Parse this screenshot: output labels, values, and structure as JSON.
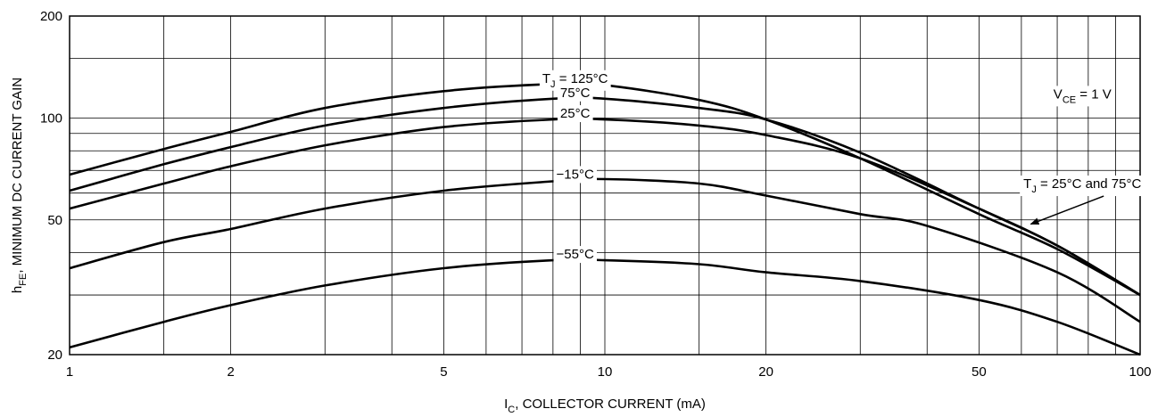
{
  "chart_data": {
    "type": "line",
    "title": "",
    "xlabel": {
      "main": "I",
      "sub": "C",
      "rest": ", COLLECTOR CURRENT (mA)"
    },
    "ylabel": {
      "main": "h",
      "sub": "FE",
      "rest": ", MINIMUM DC CURRENT GAIN"
    },
    "x_scale": "log",
    "y_scale": "log",
    "xlim": [
      1,
      100
    ],
    "ylim": [
      20,
      200
    ],
    "grid": true,
    "x_ticks": [
      1,
      2,
      5,
      10,
      20,
      50,
      100
    ],
    "x_tick_labels": [
      "1",
      "2",
      "5",
      "10",
      "20",
      "50",
      "100"
    ],
    "y_ticks": [
      20,
      50,
      100,
      200
    ],
    "y_tick_labels": [
      "20",
      "50",
      "100",
      "200"
    ],
    "x_grid": [
      1,
      1.5,
      2,
      3,
      4,
      5,
      6,
      7,
      8,
      9,
      10,
      15,
      20,
      30,
      40,
      50,
      60,
      70,
      80,
      90,
      100
    ],
    "y_grid": [
      20,
      30,
      40,
      50,
      60,
      70,
      80,
      90,
      100,
      150,
      200
    ],
    "series": [
      {
        "name": "T_J = 125°C",
        "x": [
          1,
          1.5,
          2,
          3,
          5,
          8,
          10,
          15,
          20,
          30,
          50,
          70,
          100
        ],
        "values": [
          68,
          81,
          91,
          107,
          120,
          126,
          125,
          113,
          99,
          76,
          52,
          41,
          30
        ]
      },
      {
        "name": "75°C",
        "x": [
          1,
          1.5,
          2,
          3,
          5,
          8,
          10,
          15,
          20,
          30,
          50,
          70,
          100
        ],
        "values": [
          61,
          73,
          82,
          95,
          107,
          114,
          114,
          107,
          99,
          79,
          54,
          42,
          30
        ]
      },
      {
        "name": "25°C",
        "x": [
          1,
          1.5,
          2,
          3,
          5,
          8,
          10,
          15,
          20,
          30,
          50,
          70,
          100
        ],
        "values": [
          54,
          64,
          72,
          83,
          94,
          99,
          99,
          95,
          89,
          76,
          54,
          42,
          30
        ]
      },
      {
        "name": "−15°C",
        "x": [
          1,
          1.5,
          2,
          3,
          5,
          8,
          10,
          15,
          20,
          30,
          40,
          70,
          100
        ],
        "values": [
          36,
          43,
          47,
          54,
          61,
          65,
          66,
          64,
          59,
          52,
          48,
          35,
          25
        ]
      },
      {
        "name": "−55°C",
        "x": [
          1,
          1.5,
          2,
          3,
          5,
          8,
          10,
          15,
          20,
          30,
          50,
          70,
          100
        ],
        "values": [
          21,
          25,
          28,
          32,
          36,
          38,
          38,
          37,
          35,
          33,
          29,
          25,
          20
        ]
      }
    ],
    "curve_labels": [
      {
        "series": 0,
        "main": "T",
        "sub": "J",
        "rest": " = 125°C"
      },
      {
        "series": 1,
        "main": "75°C",
        "sub": "",
        "rest": ""
      },
      {
        "series": 2,
        "main": "25°C",
        "sub": "",
        "rest": ""
      },
      {
        "series": 3,
        "main": "−15°C",
        "sub": "",
        "rest": ""
      },
      {
        "series": 4,
        "main": "−55°C",
        "sub": "",
        "rest": ""
      }
    ],
    "annotations": [
      {
        "main": "V",
        "sub": "CE",
        "rest": " = 1 V"
      },
      {
        "main": "T",
        "sub": "J",
        "rest": " = 25°C and 75°C",
        "arrow_to": {
          "x": 62,
          "y": 48
        }
      }
    ],
    "line_color": "#000000",
    "grid_color": "#000000"
  }
}
